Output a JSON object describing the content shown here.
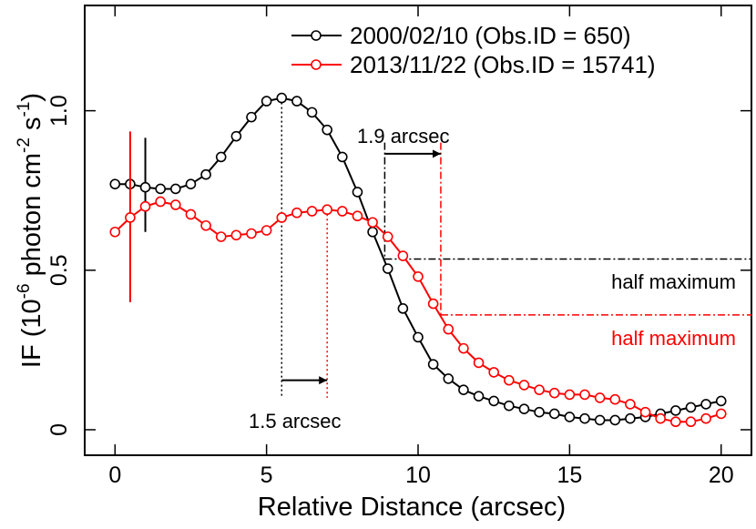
{
  "chart_data": {
    "type": "line",
    "xlabel": "Relative Distance (arcsec)",
    "ylabel": {
      "prefix": "IF (10",
      "exp1": "-6",
      "mid": " photon cm",
      "exp2": "-2",
      "mid2": " s",
      "exp3": "-1",
      "suffix": ")"
    },
    "xlim": [
      -1,
      21
    ],
    "ylim": [
      -0.08,
      1.33
    ],
    "xticks": [
      {
        "value": 0,
        "label": "0"
      },
      {
        "value": 5,
        "label": "5"
      },
      {
        "value": 10,
        "label": "10"
      },
      {
        "value": 15,
        "label": "15"
      },
      {
        "value": 20,
        "label": "20"
      }
    ],
    "yticks": [
      {
        "value": 0,
        "label": "0"
      },
      {
        "value": 0.5,
        "label": "0.5"
      },
      {
        "value": 1.0,
        "label": "1.0"
      }
    ],
    "grid": false,
    "legend_position": "top-right",
    "series": [
      {
        "name": "2000/02/10 (Obs.ID = 650)",
        "color": "#000000",
        "x": [
          0,
          0.5,
          1,
          1.5,
          2,
          2.5,
          3,
          3.5,
          4,
          4.5,
          5,
          5.5,
          6,
          6.5,
          7,
          7.5,
          8,
          8.5,
          9,
          9.5,
          10,
          10.5,
          11,
          11.5,
          12,
          12.5,
          13,
          13.5,
          14,
          14.5,
          15,
          15.5,
          16,
          16.5,
          17,
          17.5,
          18,
          18.5,
          19,
          19.5,
          20
        ],
        "y": [
          0.77,
          0.77,
          0.76,
          0.755,
          0.755,
          0.77,
          0.8,
          0.855,
          0.92,
          0.98,
          1.03,
          1.04,
          1.03,
          0.995,
          0.94,
          0.855,
          0.745,
          0.62,
          0.505,
          0.38,
          0.29,
          0.205,
          0.16,
          0.125,
          0.105,
          0.09,
          0.075,
          0.065,
          0.055,
          0.05,
          0.04,
          0.035,
          0.03,
          0.03,
          0.035,
          0.04,
          0.05,
          0.06,
          0.07,
          0.08,
          0.09
        ],
        "error_bars": [
          {
            "x": 1.0,
            "y": 0.765,
            "ylow": 0.62,
            "yhigh": 0.915
          }
        ]
      },
      {
        "name": "2013/11/22 (Obs.ID = 15741)",
        "color": "#ff0000",
        "x": [
          0,
          0.5,
          1,
          1.5,
          2,
          2.5,
          3,
          3.5,
          4,
          4.5,
          5,
          5.5,
          6,
          6.5,
          7,
          7.5,
          8,
          8.5,
          9,
          9.5,
          10,
          10.5,
          11,
          11.5,
          12,
          12.5,
          13,
          13.5,
          14,
          14.5,
          15,
          15.5,
          16,
          16.5,
          17,
          17.5,
          18,
          18.5,
          19,
          19.5,
          20
        ],
        "y": [
          0.62,
          0.665,
          0.7,
          0.715,
          0.705,
          0.675,
          0.64,
          0.605,
          0.61,
          0.615,
          0.625,
          0.665,
          0.68,
          0.685,
          0.69,
          0.685,
          0.67,
          0.65,
          0.605,
          0.545,
          0.48,
          0.395,
          0.315,
          0.255,
          0.21,
          0.18,
          0.155,
          0.14,
          0.125,
          0.115,
          0.11,
          0.11,
          0.1,
          0.095,
          0.08,
          0.055,
          0.035,
          0.025,
          0.025,
          0.035,
          0.05
        ],
        "error_bars": [
          {
            "x": 0.5,
            "y": 0.665,
            "ylow": 0.4,
            "yhigh": 0.935
          }
        ]
      }
    ],
    "annotations": {
      "peak_black_x": 5.5,
      "peak_black_y": 1.04,
      "peak_red_x": 7.0,
      "peak_red_y": 0.69,
      "peak_arrow_y": 0.155,
      "peak_shift_label": "1.5 arcsec",
      "half_black_x": 8.9,
      "half_black_y": 0.535,
      "half_red_x": 10.75,
      "half_red_y": 0.36,
      "half_arrow_y": 0.865,
      "half_shift_label": "1.9 arcsec",
      "half_max_label_black": "half maximum",
      "half_max_label_red": "half maximum"
    }
  }
}
